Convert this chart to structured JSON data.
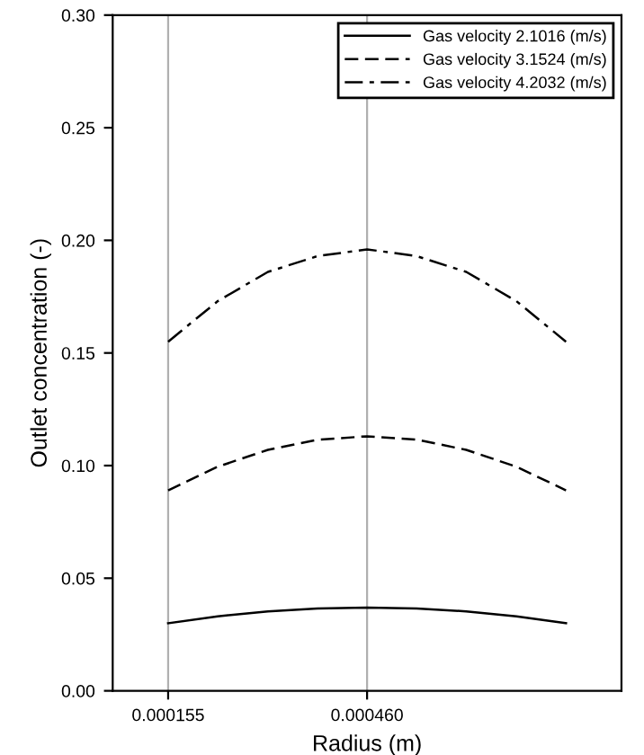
{
  "chart_data": {
    "type": "line",
    "xlabel": "Radius (m)",
    "ylabel": "Outlet concentration (-)",
    "x": [
      0.000155,
      0.000231,
      0.000308,
      0.000384,
      0.00046,
      0.000536,
      0.000612,
      0.000689,
      0.000765
    ],
    "series": [
      {
        "name": "Gas velocity 2.1016 (m/s)",
        "color": "#000000",
        "line_style": "solid",
        "values": [
          0.03,
          0.0331,
          0.0353,
          0.0366,
          0.037,
          0.0366,
          0.0353,
          0.0331,
          0.03
        ]
      },
      {
        "name": "Gas velocity 3.1524 (m/s)",
        "color": "#000000",
        "line_style": "dashed",
        "values": [
          0.089,
          0.0995,
          0.107,
          0.1115,
          0.113,
          0.1115,
          0.107,
          0.0995,
          0.089
        ]
      },
      {
        "name": "Gas velocity 4.2032 (m/s)",
        "color": "#000000",
        "line_style": "dashdot",
        "values": [
          0.155,
          0.173,
          0.186,
          0.193,
          0.196,
          0.193,
          0.186,
          0.173,
          0.155
        ]
      }
    ],
    "xlim": [
      7e-05,
      0.00085
    ],
    "xticks": [
      0.000155,
      {
        "value": 0.00046,
        "label": "0.000460"
      }
    ],
    "ylim": [
      0,
      0.3
    ],
    "yticks": [
      {
        "value": 0,
        "label": "0.00"
      },
      {
        "value": 0.05,
        "label": "0.05"
      },
      {
        "value": 0.1,
        "label": "0.10"
      },
      {
        "value": 0.15,
        "label": "0.15"
      },
      {
        "value": 0.2,
        "label": "0.20"
      },
      {
        "value": 0.25,
        "label": "0.25"
      },
      {
        "value": 0.3,
        "label": "0.30"
      }
    ],
    "grid": "x",
    "legend": "top right",
    "marker": "none"
  }
}
